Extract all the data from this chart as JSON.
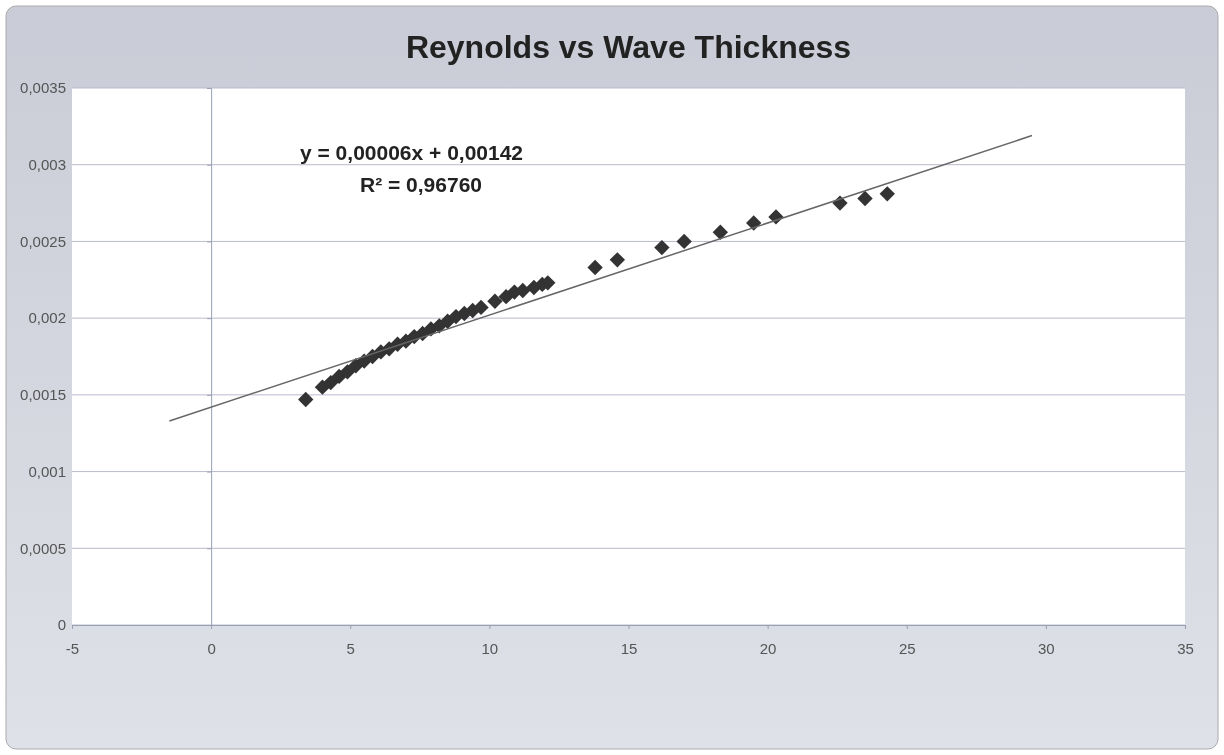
{
  "chart_data": {
    "type": "scatter",
    "title": "Reynolds vs Wave Thickness",
    "xlim": [
      -5,
      35
    ],
    "xticks": [
      -5,
      0,
      5,
      10,
      15,
      20,
      25,
      30,
      35
    ],
    "ylim": [
      0,
      0.0035
    ],
    "yticks": [
      {
        "value": 0,
        "label": "0"
      },
      {
        "value": 0.0005,
        "label": "0,0005"
      },
      {
        "value": 0.001,
        "label": "0,001"
      },
      {
        "value": 0.0015,
        "label": "0,0015"
      },
      {
        "value": 0.002,
        "label": "0,002"
      },
      {
        "value": 0.0025,
        "label": "0,0025"
      },
      {
        "value": 0.003,
        "label": "0,003"
      },
      {
        "value": 0.0035,
        "label": "0,0035"
      }
    ],
    "grid": "y",
    "series": [
      {
        "color": "#333333",
        "marker": "diamond",
        "x": [
          3.4,
          4.0,
          4.3,
          4.6,
          4.9,
          5.2,
          5.5,
          5.8,
          6.1,
          6.4,
          6.7,
          7.0,
          7.3,
          7.6,
          7.9,
          8.2,
          8.5,
          8.8,
          9.1,
          9.4,
          9.7,
          10.2,
          10.6,
          10.9,
          11.2,
          11.6,
          11.9,
          12.1,
          13.8,
          14.6,
          16.2,
          17.0,
          18.3,
          19.5,
          20.3,
          22.6,
          23.5,
          24.3
        ],
        "values": [
          0.00147,
          0.00155,
          0.00158,
          0.00162,
          0.00165,
          0.00169,
          0.00172,
          0.00175,
          0.00178,
          0.0018,
          0.00183,
          0.00185,
          0.00188,
          0.0019,
          0.00193,
          0.00195,
          0.00198,
          0.00201,
          0.00203,
          0.00205,
          0.00207,
          0.00211,
          0.00214,
          0.00217,
          0.00218,
          0.0022,
          0.00222,
          0.00223,
          0.00233,
          0.00238,
          0.00246,
          0.0025,
          0.00256,
          0.00262,
          0.00266,
          0.00275,
          0.00278,
          0.00281
        ]
      },
      {
        "type": "line",
        "color": "#666666",
        "line_style": "solid",
        "marker": "none",
        "x": [
          -1.5,
          29.5
        ],
        "values": [
          0.00133,
          0.00319
        ]
      }
    ],
    "annotations": [
      "y = 0,00006x + 0,00142",
      "R² = 0,96760"
    ]
  }
}
